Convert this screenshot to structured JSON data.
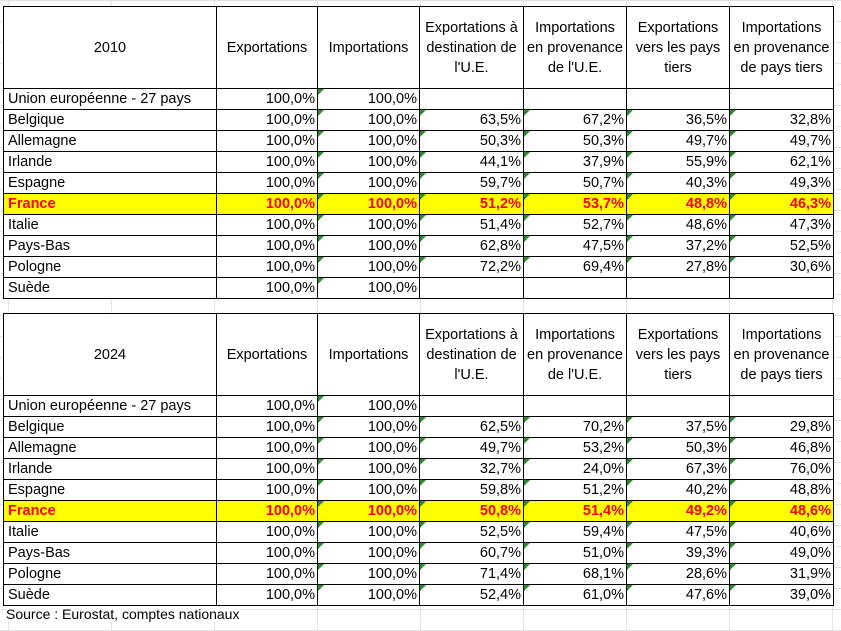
{
  "headers": [
    "Exportations",
    "Importations",
    "Exportations à destination de l'U.E.",
    "Importations en provenance de l'U.E.",
    "Exportations vers les pays tiers",
    "Importations en provenance de pays tiers"
  ],
  "tables": [
    {
      "year": "2010",
      "rows": [
        {
          "label": "Union européenne - 27 pays",
          "values": [
            "100,0%",
            "100,0%",
            "",
            "",
            "",
            ""
          ]
        },
        {
          "label": "Belgique",
          "values": [
            "100,0%",
            "100,0%",
            "63,5%",
            "67,2%",
            "36,5%",
            "32,8%"
          ]
        },
        {
          "label": "Allemagne",
          "values": [
            "100,0%",
            "100,0%",
            "50,3%",
            "50,3%",
            "49,7%",
            "49,7%"
          ]
        },
        {
          "label": "Irlande",
          "values": [
            "100,0%",
            "100,0%",
            "44,1%",
            "37,9%",
            "55,9%",
            "62,1%"
          ]
        },
        {
          "label": "Espagne",
          "values": [
            "100,0%",
            "100,0%",
            "59,7%",
            "50,7%",
            "40,3%",
            "49,3%"
          ]
        },
        {
          "label": "France",
          "values": [
            "100,0%",
            "100,0%",
            "51,2%",
            "53,7%",
            "48,8%",
            "46,3%"
          ],
          "highlight": true
        },
        {
          "label": "Italie",
          "values": [
            "100,0%",
            "100,0%",
            "51,4%",
            "52,7%",
            "48,6%",
            "47,3%"
          ]
        },
        {
          "label": "Pays-Bas",
          "values": [
            "100,0%",
            "100,0%",
            "62,8%",
            "47,5%",
            "37,2%",
            "52,5%"
          ]
        },
        {
          "label": "Pologne",
          "values": [
            "100,0%",
            "100,0%",
            "72,2%",
            "69,4%",
            "27,8%",
            "30,6%"
          ]
        },
        {
          "label": "Suède",
          "values": [
            "100,0%",
            "100,0%",
            "",
            "",
            "",
            ""
          ]
        }
      ]
    },
    {
      "year": "2024",
      "rows": [
        {
          "label": "Union européenne - 27 pays",
          "values": [
            "100,0%",
            "100,0%",
            "",
            "",
            "",
            ""
          ]
        },
        {
          "label": "Belgique",
          "values": [
            "100,0%",
            "100,0%",
            "62,5%",
            "70,2%",
            "37,5%",
            "29,8%"
          ]
        },
        {
          "label": "Allemagne",
          "values": [
            "100,0%",
            "100,0%",
            "49,7%",
            "53,2%",
            "50,3%",
            "46,8%"
          ]
        },
        {
          "label": "Irlande",
          "values": [
            "100,0%",
            "100,0%",
            "32,7%",
            "24,0%",
            "67,3%",
            "76,0%"
          ]
        },
        {
          "label": "Espagne",
          "values": [
            "100,0%",
            "100,0%",
            "59,8%",
            "51,2%",
            "40,2%",
            "48,8%"
          ]
        },
        {
          "label": "France",
          "values": [
            "100,0%",
            "100,0%",
            "50,8%",
            "51,4%",
            "49,2%",
            "48,6%"
          ],
          "highlight": true
        },
        {
          "label": "Italie",
          "values": [
            "100,0%",
            "100,0%",
            "52,5%",
            "59,4%",
            "47,5%",
            "40,6%"
          ]
        },
        {
          "label": "Pays-Bas",
          "values": [
            "100,0%",
            "100,0%",
            "60,7%",
            "51,0%",
            "39,3%",
            "49,0%"
          ]
        },
        {
          "label": "Pologne",
          "values": [
            "100,0%",
            "100,0%",
            "71,4%",
            "68,1%",
            "28,6%",
            "31,9%"
          ]
        },
        {
          "label": "Suède",
          "values": [
            "100,0%",
            "100,0%",
            "52,4%",
            "61,0%",
            "47,6%",
            "39,0%"
          ]
        }
      ]
    }
  ],
  "source": "Source : Eurostat, comptes nationaux",
  "colors": {
    "highlight_bg": "#ffff00",
    "highlight_text": "#ff0000",
    "error_marker": "#2e8b2e"
  }
}
